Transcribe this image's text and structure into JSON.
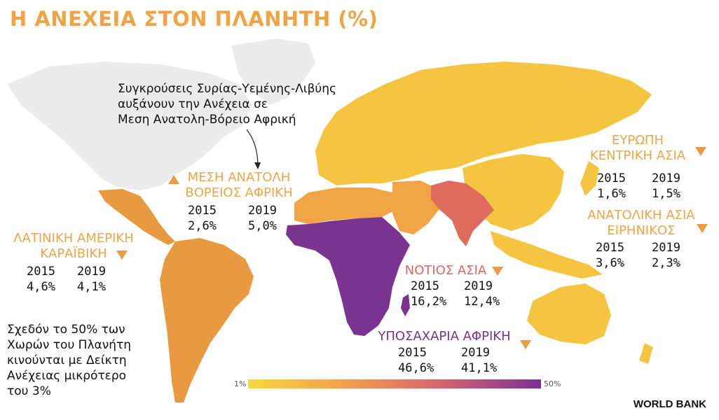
{
  "title": "Η ΑΝΕΧΕΙΑ ΣΤΟΝ ΠΛΑΝΗΤΗ (%)",
  "annotation": [
    "Συγκρούσεις Συρίας-Υεμένης-Λιβύης",
    "αυξάνουν την Ανέχεια σε",
    "Μεση Ανατολη-Βόρειο Αφρική"
  ],
  "footnote": [
    "Σχεδόν το 50% των",
    "Χωρών του Πλανήτη",
    "κινούνται με Δείκτη",
    "Ανέχειας μικρότερο",
    "του 3%"
  ],
  "year_labels": [
    "2015",
    "2019"
  ],
  "regions": {
    "mena": {
      "name": [
        "ΜΕΣΗ ΑΝΑΤΟΛΗ",
        "ΒΟΡΕΙΟΣ ΑΦΡΙΚΗ"
      ],
      "v2015": "2,6%",
      "v2019": "5,0%",
      "trend": "up",
      "color": "#f0a445"
    },
    "latam": {
      "name": [
        "ΛΑΤΙΝΙΚΗ ΑΜΕΡΙΚΗ",
        "ΚΑΡΑΪΒΙΚΗ"
      ],
      "v2015": "4,6%",
      "v2019": "4,1%",
      "trend": "down",
      "color": "#f0a445"
    },
    "europe": {
      "name": [
        "ΕΥΡΩΠΗ",
        "ΚΕΝΤΡΙΚΗ ΑΣΙΑ"
      ],
      "v2015": "1,6%",
      "v2019": "1,5%",
      "trend": "down",
      "color": "#f0a445"
    },
    "eastasia": {
      "name": [
        "ΑΝΑΤΟΛΙΚΗ ΑΣΙΑ",
        "ΕΙΡΗΝΙΚΟΣ"
      ],
      "v2015": "3,6%",
      "v2019": "2,3%",
      "trend": "down",
      "color": "#f0a445"
    },
    "southasia": {
      "name": [
        "ΝΟΤΙΟΣ ΑΣΙΑ"
      ],
      "v2015": "16,2%",
      "v2019": "12,4%",
      "trend": "down",
      "color": "#e0665f"
    },
    "ssa": {
      "name": [
        "ΥΠΟΣΑΧΑΡΙΑ ΑΦΡΙΚΗ"
      ],
      "v2015": "46,6%",
      "v2019": "41,1%",
      "trend": "down",
      "color": "#7a3490"
    }
  },
  "legend": {
    "min": "1%",
    "max": "50%"
  },
  "source": "WORLD BANK",
  "map_colors": {
    "no_data": "#ececee",
    "yellow": "#f5c542",
    "light_orange": "#f0a445",
    "orange": "#e9993f",
    "salmon": "#df6a5e",
    "purple": "#7a3490"
  }
}
